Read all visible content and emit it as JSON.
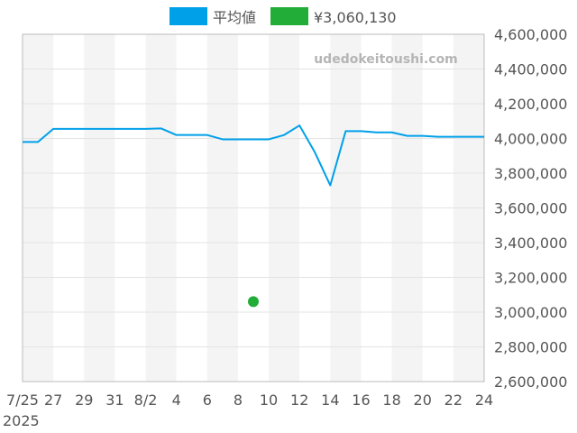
{
  "chart_data": {
    "type": "line",
    "title": "",
    "xlabel": "",
    "ylabel": "",
    "watermark": "udedokeitoushi.com",
    "legend": {
      "placement": "top-center",
      "items": [
        {
          "label": "平均値",
          "color": "#00a0e9"
        },
        {
          "label": "¥3,060,130",
          "color": "#22ac38"
        }
      ]
    },
    "grid": true,
    "ylim": [
      2600000,
      4600000
    ],
    "y_ticks": [
      2600000,
      2800000,
      3000000,
      3200000,
      3400000,
      3600000,
      3800000,
      4000000,
      4200000,
      4400000,
      4600000
    ],
    "y_tick_labels": [
      "2,600,000",
      "2,800,000",
      "3,000,000",
      "3,200,000",
      "3,400,000",
      "3,600,000",
      "3,800,000",
      "4,000,000",
      "4,200,000",
      "4,400,000",
      "4,600,000"
    ],
    "x_categories": [
      "7/25",
      "7/26",
      "7/27",
      "7/28",
      "7/29",
      "7/30",
      "7/31",
      "8/1",
      "8/2",
      "8/3",
      "8/4",
      "8/5",
      "8/6",
      "8/7",
      "8/8",
      "8/9",
      "8/10",
      "8/11",
      "8/12",
      "8/13",
      "8/14",
      "8/15",
      "8/16",
      "8/17",
      "8/18",
      "8/19",
      "8/20",
      "8/21",
      "8/22",
      "8/23",
      "8/24"
    ],
    "x_tick_labels": [
      "7/25",
      "27",
      "29",
      "31",
      "8/2",
      "4",
      "6",
      "8",
      "10",
      "12",
      "14",
      "16",
      "18",
      "20",
      "22",
      "24"
    ],
    "x_year_label": "2025",
    "series": [
      {
        "name": "平均値",
        "color": "#00a0e9",
        "values": [
          3980000,
          3980000,
          4055000,
          4055000,
          4055000,
          4055000,
          4055000,
          4055000,
          4055000,
          4058000,
          4020000,
          4020000,
          4020000,
          3995000,
          3995000,
          3995000,
          3995000,
          4020000,
          4075000,
          3920000,
          3730000,
          4042000,
          4042000,
          4035000,
          4035000,
          4015000,
          4015000,
          4010000,
          4010000,
          4010000,
          4010000
        ]
      },
      {
        "name": "¥3,060,130",
        "color": "#22ac38",
        "type": "point",
        "x": "8/9",
        "values": [
          3060130
        ]
      }
    ]
  }
}
